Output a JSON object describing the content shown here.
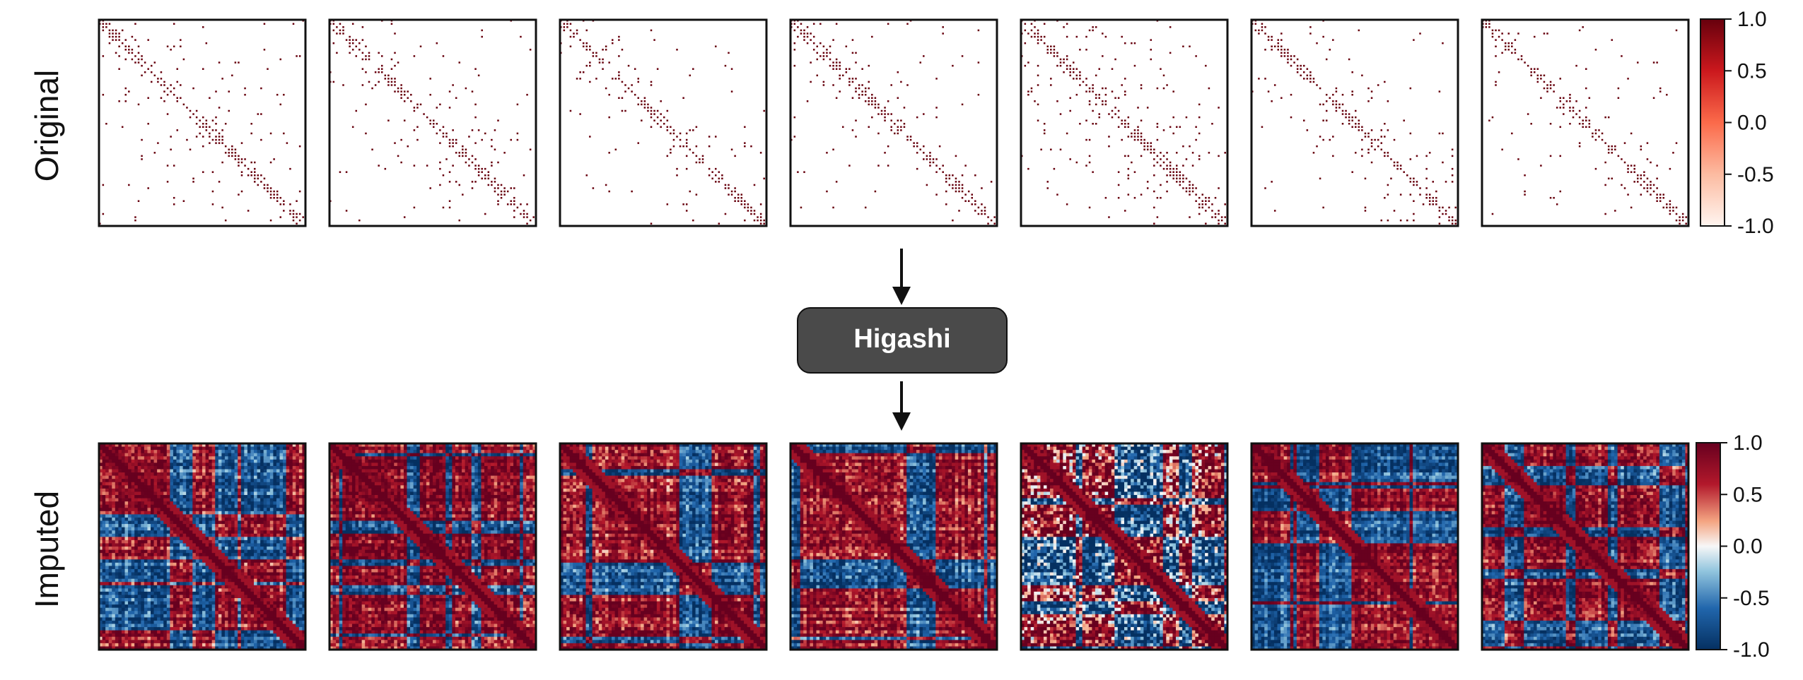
{
  "row_labels": {
    "top": "Original",
    "bottom": "Imputed"
  },
  "method_box": {
    "label": "Higashi"
  },
  "colorbar": {
    "ticks": [
      "1.0",
      "0.5",
      "0.0",
      "-0.5",
      "-1.0"
    ],
    "original_colormap": "white-to-dark-red (Reds)",
    "imputed_colormap": "blue-white-red (RdBu_r)"
  },
  "colors": {
    "dark_red": "#67000d",
    "mid_red": "#d6604d",
    "light_red": "#fddbc7",
    "white": "#ffffff",
    "light_blue": "#d1e5f0",
    "mid_blue": "#4393c3",
    "dark_blue": "#053061",
    "box_fill": "#4a4a4a",
    "box_text": "#ffffff",
    "frame": "#111111"
  },
  "chart_data": [
    {
      "type": "heatmap",
      "title": "",
      "row": "Original",
      "panels": 7,
      "value_range": [
        -1.0,
        1.0
      ],
      "description_values": "sparse single-cell contact maps; mostly empty with contacts concentrated along the diagonal",
      "panel_sparsity": [
        0.06,
        0.05,
        0.04,
        0.05,
        0.09,
        0.05,
        0.05
      ]
    },
    {
      "type": "heatmap",
      "title": "",
      "row": "Imputed",
      "panels": 7,
      "value_range": [
        -1.0,
        1.0
      ],
      "description_values": "dense imputed contact maps showing block (compartment) structure with strong diagonal",
      "panel_noise": [
        0.35,
        0.35,
        0.35,
        0.35,
        0.75,
        0.3,
        0.35
      ]
    }
  ]
}
